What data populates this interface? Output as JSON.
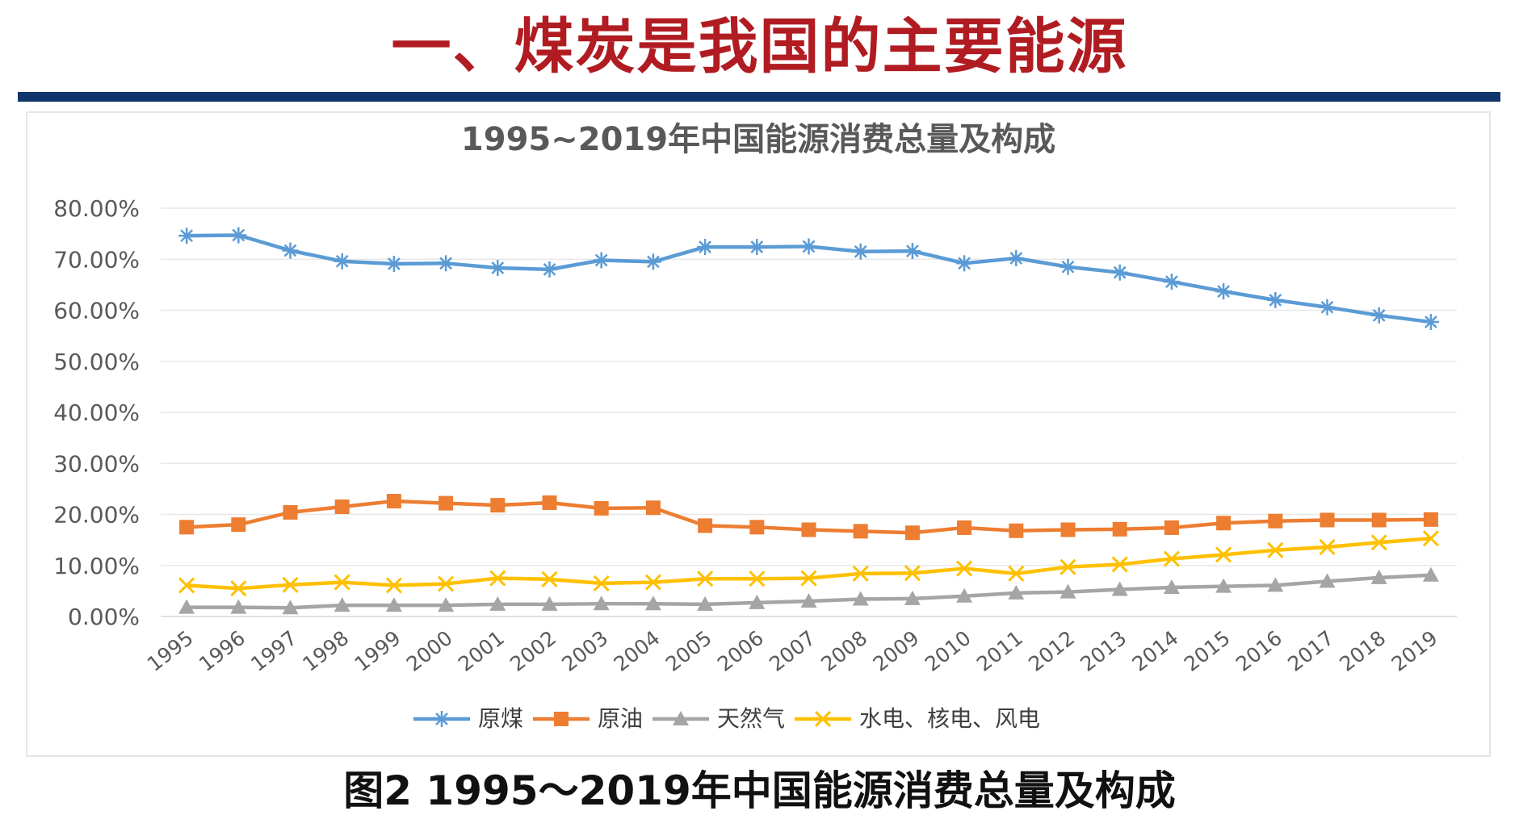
{
  "slide": {
    "title": "一、煤炭是我国的主要能源",
    "caption": "图2  1995～2019年中国能源消费总量及构成",
    "title_color": "#b01c22",
    "rule_color": "#10356b"
  },
  "chart_data": {
    "type": "line",
    "title": "1995~2019年中国能源消费总量及构成",
    "xlabel": "",
    "ylabel": "",
    "ylim": [
      0,
      80
    ],
    "yticks": [
      "0.00%",
      "10.00%",
      "20.00%",
      "30.00%",
      "40.00%",
      "50.00%",
      "60.00%",
      "70.00%",
      "80.00%"
    ],
    "grid": true,
    "legend_position": "bottom",
    "categories": [
      "1995",
      "1996",
      "1997",
      "1998",
      "1999",
      "2000",
      "2001",
      "2002",
      "2003",
      "2004",
      "2005",
      "2006",
      "2007",
      "2008",
      "2009",
      "2010",
      "2011",
      "2012",
      "2013",
      "2014",
      "2015",
      "2016",
      "2017",
      "2018",
      "2019"
    ],
    "series": [
      {
        "name": "原煤",
        "color": "#5b9bd5",
        "marker": "asterisk",
        "values": [
          74.6,
          74.7,
          71.7,
          69.6,
          69.1,
          69.2,
          68.3,
          68.0,
          69.8,
          69.5,
          72.4,
          72.4,
          72.5,
          71.5,
          71.6,
          69.2,
          70.2,
          68.5,
          67.4,
          65.6,
          63.7,
          62.0,
          60.6,
          59.0,
          57.7
        ]
      },
      {
        "name": "原油",
        "color": "#ed7d31",
        "marker": "square",
        "values": [
          17.5,
          18.0,
          20.4,
          21.5,
          22.6,
          22.2,
          21.8,
          22.3,
          21.2,
          21.3,
          17.8,
          17.5,
          17.0,
          16.7,
          16.4,
          17.4,
          16.8,
          17.0,
          17.1,
          17.4,
          18.3,
          18.7,
          18.9,
          18.9,
          19.0
        ]
      },
      {
        "name": "天然气",
        "color": "#a5a5a5",
        "marker": "triangle",
        "values": [
          1.8,
          1.8,
          1.7,
          2.2,
          2.2,
          2.2,
          2.4,
          2.4,
          2.5,
          2.5,
          2.4,
          2.7,
          3.0,
          3.4,
          3.5,
          4.0,
          4.6,
          4.8,
          5.3,
          5.7,
          5.9,
          6.1,
          6.9,
          7.6,
          8.1
        ]
      },
      {
        "name": "水电、核电、风电",
        "color": "#ffc000",
        "marker": "cross",
        "values": [
          6.1,
          5.5,
          6.2,
          6.7,
          6.1,
          6.4,
          7.5,
          7.3,
          6.5,
          6.7,
          7.4,
          7.4,
          7.5,
          8.4,
          8.5,
          9.4,
          8.4,
          9.7,
          10.2,
          11.3,
          12.1,
          13.0,
          13.6,
          14.5,
          15.3
        ]
      }
    ]
  }
}
